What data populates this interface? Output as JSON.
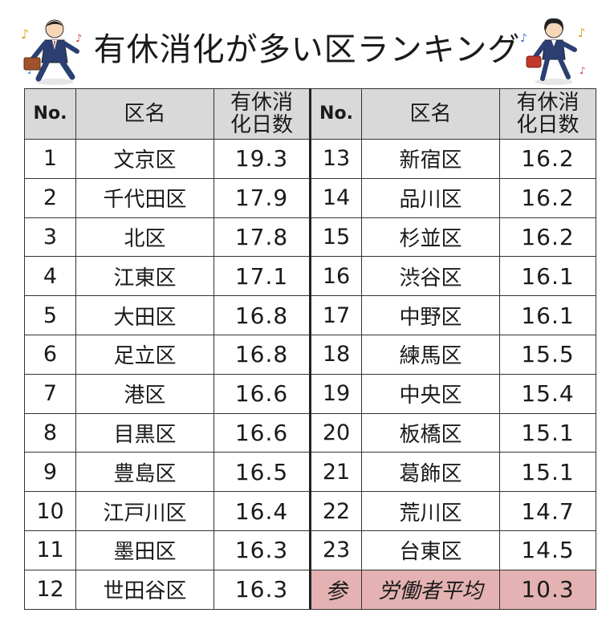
{
  "title": "有休消化が多い区ランキング",
  "headers": {
    "no": "No.",
    "ward": "区名",
    "days_line1": "有休消",
    "days_line2": "化日数"
  },
  "left_rows": [
    {
      "no": "1",
      "ward": "文京区",
      "days": "19.3"
    },
    {
      "no": "2",
      "ward": "千代田区",
      "days": "17.9"
    },
    {
      "no": "3",
      "ward": "北区",
      "days": "17.8"
    },
    {
      "no": "4",
      "ward": "江東区",
      "days": "17.1"
    },
    {
      "no": "5",
      "ward": "大田区",
      "days": "16.8"
    },
    {
      "no": "6",
      "ward": "足立区",
      "days": "16.8"
    },
    {
      "no": "7",
      "ward": "港区",
      "days": "16.6"
    },
    {
      "no": "8",
      "ward": "目黒区",
      "days": "16.6"
    },
    {
      "no": "9",
      "ward": "豊島区",
      "days": "16.5"
    },
    {
      "no": "10",
      "ward": "江戸川区",
      "days": "16.4"
    },
    {
      "no": "11",
      "ward": "墨田区",
      "days": "16.3"
    },
    {
      "no": "12",
      "ward": "世田谷区",
      "days": "16.3"
    }
  ],
  "right_rows": [
    {
      "no": "13",
      "ward": "新宿区",
      "days": "16.2"
    },
    {
      "no": "14",
      "ward": "品川区",
      "days": "16.2"
    },
    {
      "no": "15",
      "ward": "杉並区",
      "days": "16.2"
    },
    {
      "no": "16",
      "ward": "渋谷区",
      "days": "16.1"
    },
    {
      "no": "17",
      "ward": "中野区",
      "days": "16.1"
    },
    {
      "no": "18",
      "ward": "練馬区",
      "days": "15.5"
    },
    {
      "no": "19",
      "ward": "中央区",
      "days": "15.4"
    },
    {
      "no": "20",
      "ward": "板橋区",
      "days": "15.1"
    },
    {
      "no": "21",
      "ward": "葛飾区",
      "days": "15.1"
    },
    {
      "no": "22",
      "ward": "荒川区",
      "days": "14.7"
    },
    {
      "no": "23",
      "ward": "台東区",
      "days": "14.5"
    }
  ],
  "reference_row": {
    "no": "参",
    "ward": "労働者平均",
    "days": "10.3"
  },
  "colors": {
    "header_bg": "#d9d9d9",
    "reference_bg": "#e4b2b2",
    "suit": "#2b3f73",
    "skin": "#f7d6b8",
    "bag": "#c0392b"
  },
  "icons": [
    "businessman-icon",
    "businesswoman-icon",
    "music-note-icon"
  ]
}
